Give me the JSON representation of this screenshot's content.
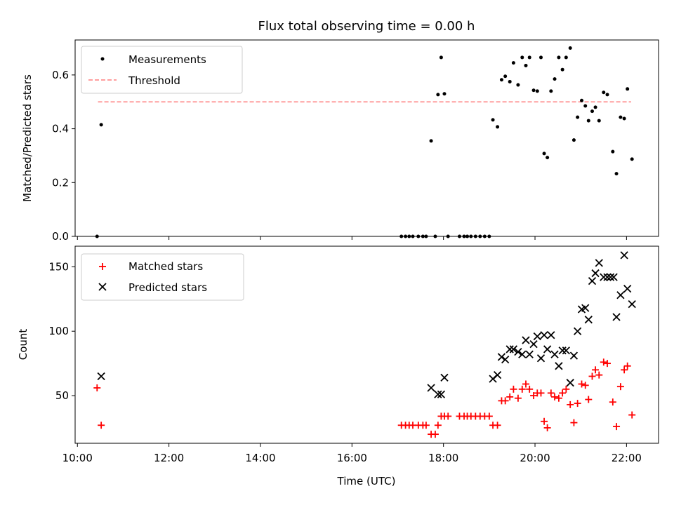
{
  "title": "Flux total observing time = 0.00 h",
  "colors": {
    "measurement": "#000000",
    "threshold": "#ff7f7f",
    "matched": "#ff0000",
    "predicted": "#000000"
  },
  "chart_data": [
    {
      "type": "scatter",
      "ylabel": "Matched/Predicted stars",
      "xlim": [
        9.95,
        22.7
      ],
      "ylim": [
        0,
        0.73
      ],
      "yticks": [
        0.0,
        0.2,
        0.4,
        0.6
      ],
      "ytick_labels": [
        "0.0",
        "0.2",
        "0.4",
        "0.6"
      ],
      "legend": {
        "placement": "top-left",
        "entries": [
          "Measurements",
          "Threshold"
        ]
      },
      "threshold": {
        "name": "Threshold",
        "value": 0.5,
        "x_range": [
          10.45,
          22.1
        ]
      },
      "series": [
        {
          "name": "Measurements",
          "points": [
            [
              10.43,
              0.0
            ],
            [
              10.52,
              0.415
            ],
            [
              17.08,
              0.0
            ],
            [
              17.17,
              0.0
            ],
            [
              17.25,
              0.0
            ],
            [
              17.33,
              0.0
            ],
            [
              17.45,
              0.0
            ],
            [
              17.55,
              0.0
            ],
            [
              17.62,
              0.0
            ],
            [
              17.73,
              0.355
            ],
            [
              17.82,
              0.0
            ],
            [
              17.88,
              0.527
            ],
            [
              17.95,
              0.665
            ],
            [
              18.02,
              0.53
            ],
            [
              18.1,
              0.0
            ],
            [
              18.35,
              0.0
            ],
            [
              18.45,
              0.0
            ],
            [
              18.52,
              0.0
            ],
            [
              18.6,
              0.0
            ],
            [
              18.7,
              0.0
            ],
            [
              18.8,
              0.0
            ],
            [
              18.9,
              0.0
            ],
            [
              19.0,
              0.0
            ],
            [
              19.08,
              0.433
            ],
            [
              19.18,
              0.407
            ],
            [
              19.27,
              0.582
            ],
            [
              19.35,
              0.595
            ],
            [
              19.45,
              0.575
            ],
            [
              19.53,
              0.645
            ],
            [
              19.63,
              0.563
            ],
            [
              19.72,
              0.665
            ],
            [
              19.8,
              0.635
            ],
            [
              19.88,
              0.665
            ],
            [
              19.97,
              0.543
            ],
            [
              20.05,
              0.54
            ],
            [
              20.13,
              0.665
            ],
            [
              20.2,
              0.308
            ],
            [
              20.27,
              0.293
            ],
            [
              20.35,
              0.54
            ],
            [
              20.43,
              0.585
            ],
            [
              20.52,
              0.665
            ],
            [
              20.6,
              0.62
            ],
            [
              20.68,
              0.665
            ],
            [
              20.77,
              0.7
            ],
            [
              20.85,
              0.358
            ],
            [
              20.93,
              0.443
            ],
            [
              21.02,
              0.505
            ],
            [
              21.1,
              0.485
            ],
            [
              21.17,
              0.43
            ],
            [
              21.25,
              0.465
            ],
            [
              21.32,
              0.48
            ],
            [
              21.4,
              0.43
            ],
            [
              21.5,
              0.535
            ],
            [
              21.58,
              0.527
            ],
            [
              21.7,
              0.315
            ],
            [
              21.78,
              0.233
            ],
            [
              21.87,
              0.443
            ],
            [
              21.95,
              0.438
            ],
            [
              22.02,
              0.548
            ],
            [
              22.12,
              0.287
            ]
          ]
        }
      ]
    },
    {
      "type": "scatter",
      "xlabel": "Time (UTC)",
      "ylabel": "Count",
      "xlim": [
        9.95,
        22.7
      ],
      "ylim": [
        13,
        166
      ],
      "xticks": [
        10,
        12,
        14,
        16,
        18,
        20,
        22
      ],
      "xtick_labels": [
        "10:00",
        "12:00",
        "14:00",
        "16:00",
        "18:00",
        "20:00",
        "22:00"
      ],
      "yticks": [
        50,
        100,
        150
      ],
      "ytick_labels": [
        "50",
        "100",
        "150"
      ],
      "legend": {
        "placement": "top-left",
        "entries": [
          "Matched stars",
          "Predicted stars"
        ]
      },
      "series": [
        {
          "name": "Matched stars",
          "marker": "plus",
          "points": [
            [
              10.43,
              56
            ],
            [
              10.52,
              27
            ],
            [
              17.08,
              27
            ],
            [
              17.17,
              27
            ],
            [
              17.25,
              27
            ],
            [
              17.33,
              27
            ],
            [
              17.45,
              27
            ],
            [
              17.55,
              27
            ],
            [
              17.62,
              27
            ],
            [
              17.73,
              20
            ],
            [
              17.82,
              20
            ],
            [
              17.88,
              27
            ],
            [
              17.95,
              34
            ],
            [
              18.02,
              34
            ],
            [
              18.1,
              34
            ],
            [
              18.35,
              34
            ],
            [
              18.45,
              34
            ],
            [
              18.52,
              34
            ],
            [
              18.6,
              34
            ],
            [
              18.7,
              34
            ],
            [
              18.8,
              34
            ],
            [
              18.9,
              34
            ],
            [
              19.0,
              34
            ],
            [
              19.08,
              27
            ],
            [
              19.18,
              27
            ],
            [
              19.27,
              46
            ],
            [
              19.35,
              46
            ],
            [
              19.45,
              49
            ],
            [
              19.53,
              55
            ],
            [
              19.63,
              48
            ],
            [
              19.72,
              55
            ],
            [
              19.8,
              59
            ],
            [
              19.88,
              55
            ],
            [
              19.97,
              50
            ],
            [
              20.05,
              52
            ],
            [
              20.13,
              52
            ],
            [
              20.2,
              30
            ],
            [
              20.27,
              25
            ],
            [
              20.35,
              52
            ],
            [
              20.43,
              49
            ],
            [
              20.52,
              48
            ],
            [
              20.6,
              52
            ],
            [
              20.68,
              55
            ],
            [
              20.77,
              43
            ],
            [
              20.85,
              29
            ],
            [
              20.93,
              44
            ],
            [
              21.02,
              59
            ],
            [
              21.1,
              58
            ],
            [
              21.17,
              47
            ],
            [
              21.25,
              65
            ],
            [
              21.32,
              70
            ],
            [
              21.4,
              66
            ],
            [
              21.5,
              76
            ],
            [
              21.58,
              75
            ],
            [
              21.7,
              45
            ],
            [
              21.78,
              26
            ],
            [
              21.87,
              57
            ],
            [
              21.95,
              70
            ],
            [
              22.02,
              73
            ],
            [
              22.12,
              35
            ]
          ]
        },
        {
          "name": "Predicted stars",
          "marker": "x",
          "points": [
            [
              10.52,
              65
            ],
            [
              17.73,
              56
            ],
            [
              17.88,
              51
            ],
            [
              17.95,
              51
            ],
            [
              18.02,
              64
            ],
            [
              19.08,
              63
            ],
            [
              19.18,
              66
            ],
            [
              19.27,
              80
            ],
            [
              19.35,
              78
            ],
            [
              19.45,
              86
            ],
            [
              19.53,
              86
            ],
            [
              19.63,
              84
            ],
            [
              19.72,
              82
            ],
            [
              19.8,
              93
            ],
            [
              19.88,
              82
            ],
            [
              19.97,
              90
            ],
            [
              20.05,
              96
            ],
            [
              20.13,
              79
            ],
            [
              20.2,
              97
            ],
            [
              20.27,
              86
            ],
            [
              20.35,
              97
            ],
            [
              20.43,
              82
            ],
            [
              20.52,
              73
            ],
            [
              20.6,
              85
            ],
            [
              20.68,
              85
            ],
            [
              20.77,
              60
            ],
            [
              20.85,
              81
            ],
            [
              20.93,
              100
            ],
            [
              21.02,
              117
            ],
            [
              21.1,
              118
            ],
            [
              21.17,
              109
            ],
            [
              21.25,
              139
            ],
            [
              21.32,
              145
            ],
            [
              21.4,
              153
            ],
            [
              21.5,
              142
            ],
            [
              21.58,
              142
            ],
            [
              21.65,
              142
            ],
            [
              21.72,
              142
            ],
            [
              21.78,
              111
            ],
            [
              21.87,
              128
            ],
            [
              21.95,
              159
            ],
            [
              22.02,
              133
            ],
            [
              22.12,
              121
            ]
          ]
        }
      ]
    }
  ]
}
